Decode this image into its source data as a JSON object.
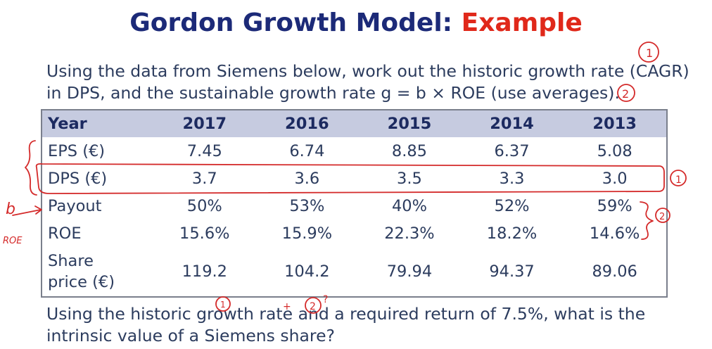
{
  "title": {
    "main": "Gordon Growth Model:",
    "accent": "Example"
  },
  "question_1": {
    "line1": "Using the data from Siemens below, work out the historic growth rate (CAGR)",
    "line2": "in DPS, and the sustainable growth rate g = b × ROE (use averages)."
  },
  "table": {
    "header": {
      "label": "Year",
      "years": [
        "2017",
        "2016",
        "2015",
        "2014",
        "2013"
      ]
    },
    "rows": [
      {
        "label": "EPS (€)",
        "values": [
          "7.45",
          "6.74",
          "8.85",
          "6.37",
          "5.08"
        ]
      },
      {
        "label": "DPS (€)",
        "values": [
          "3.7",
          "3.6",
          "3.5",
          "3.3",
          "3.0"
        ]
      },
      {
        "label": "Payout",
        "values": [
          "50%",
          "53%",
          "40%",
          "52%",
          "59%"
        ]
      },
      {
        "label": "ROE",
        "values": [
          "15.6%",
          "15.9%",
          "22.3%",
          "18.2%",
          "14.6%"
        ]
      }
    ],
    "share_price": {
      "label_line1": "Share",
      "label_line2": "price (€)",
      "values": [
        "119.2",
        "104.2",
        "79.94",
        "94.37",
        "89.06"
      ]
    }
  },
  "question_2": {
    "line1": "Using the historic growth rate and a required return of 7.5%, what is the",
    "line2": "intrinsic value of a Siemens share?"
  },
  "annotations": {
    "b_label": "b",
    "roe_label": "ROE",
    "mark_1": "1",
    "mark_2": "2",
    "plus": "+",
    "question_mark": "?",
    "ink_color": "#d42a2a"
  }
}
